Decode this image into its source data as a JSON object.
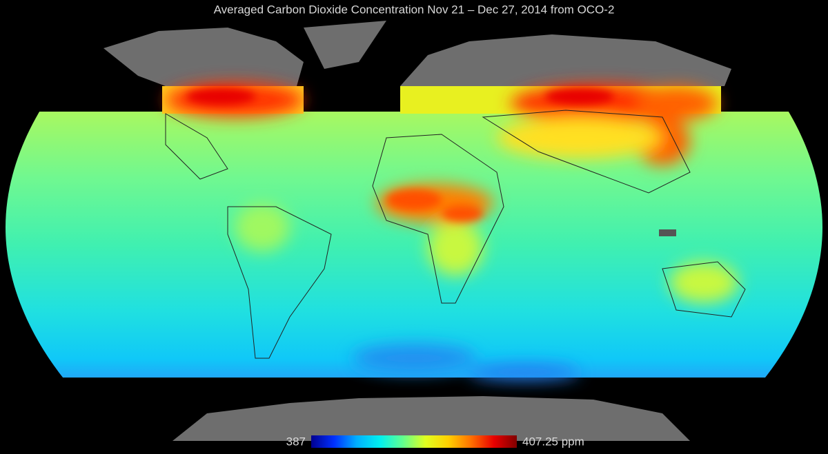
{
  "header": {
    "title": "Averaged Carbon Dioxide Concentration Nov 21 – Dec 27, 2014 from OCO-2"
  },
  "colorbar": {
    "ticks": [
      387,
      {
        "value": 407.25,
        "label": "407.25 ppm"
      }
    ],
    "colors": [
      "#000090",
      "#0030ff",
      "#00b0ff",
      "#00f0f0",
      "#60ff90",
      "#e0ff20",
      "#ffd000",
      "#ff7000",
      "#e80000",
      "#800000"
    ]
  }
}
